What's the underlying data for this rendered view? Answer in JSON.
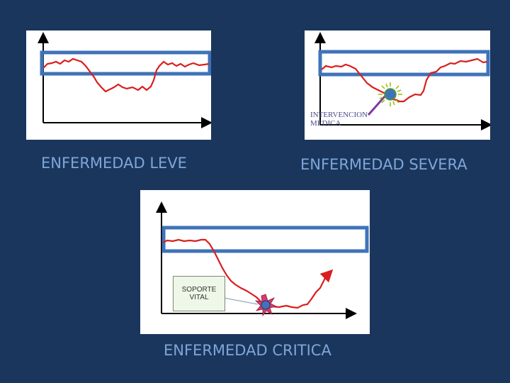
{
  "colors": {
    "background": "#1a365d",
    "caption": "#7ea6d8",
    "band": "#3f73b9",
    "curve": "#d91e1e",
    "axis": "#000000"
  },
  "panels": {
    "leve": {
      "caption": "ENFERMEDAD LEVE"
    },
    "severa": {
      "caption": "ENFERMEDAD SEVERA",
      "annotation_line1": "INTERVENCION",
      "annotation_line2": "MEDICA"
    },
    "critica": {
      "caption": "ENFERMEDAD CRITICA",
      "box_line1": "SOPORTE",
      "box_line2": "VITAL"
    }
  }
}
